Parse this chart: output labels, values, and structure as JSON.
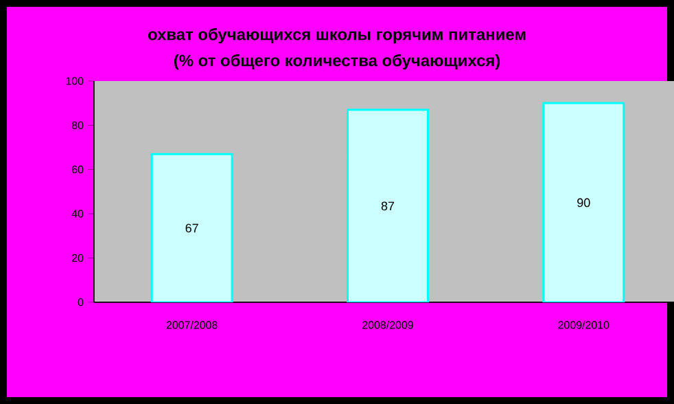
{
  "chart_data": {
    "type": "bar",
    "title": "охват обучающихся школы горячим питанием",
    "subtitle": "(% от общего количества обучающихся)",
    "categories": [
      "2007/2008",
      "2008/2009",
      "2009/2010"
    ],
    "values": [
      67,
      87,
      90
    ],
    "value_labels": [
      "67",
      "87",
      "90"
    ],
    "color": "#ccffff",
    "ylim": [
      0,
      100
    ],
    "yticks": [
      0,
      20,
      40,
      60,
      80,
      100
    ],
    "grid": false
  }
}
